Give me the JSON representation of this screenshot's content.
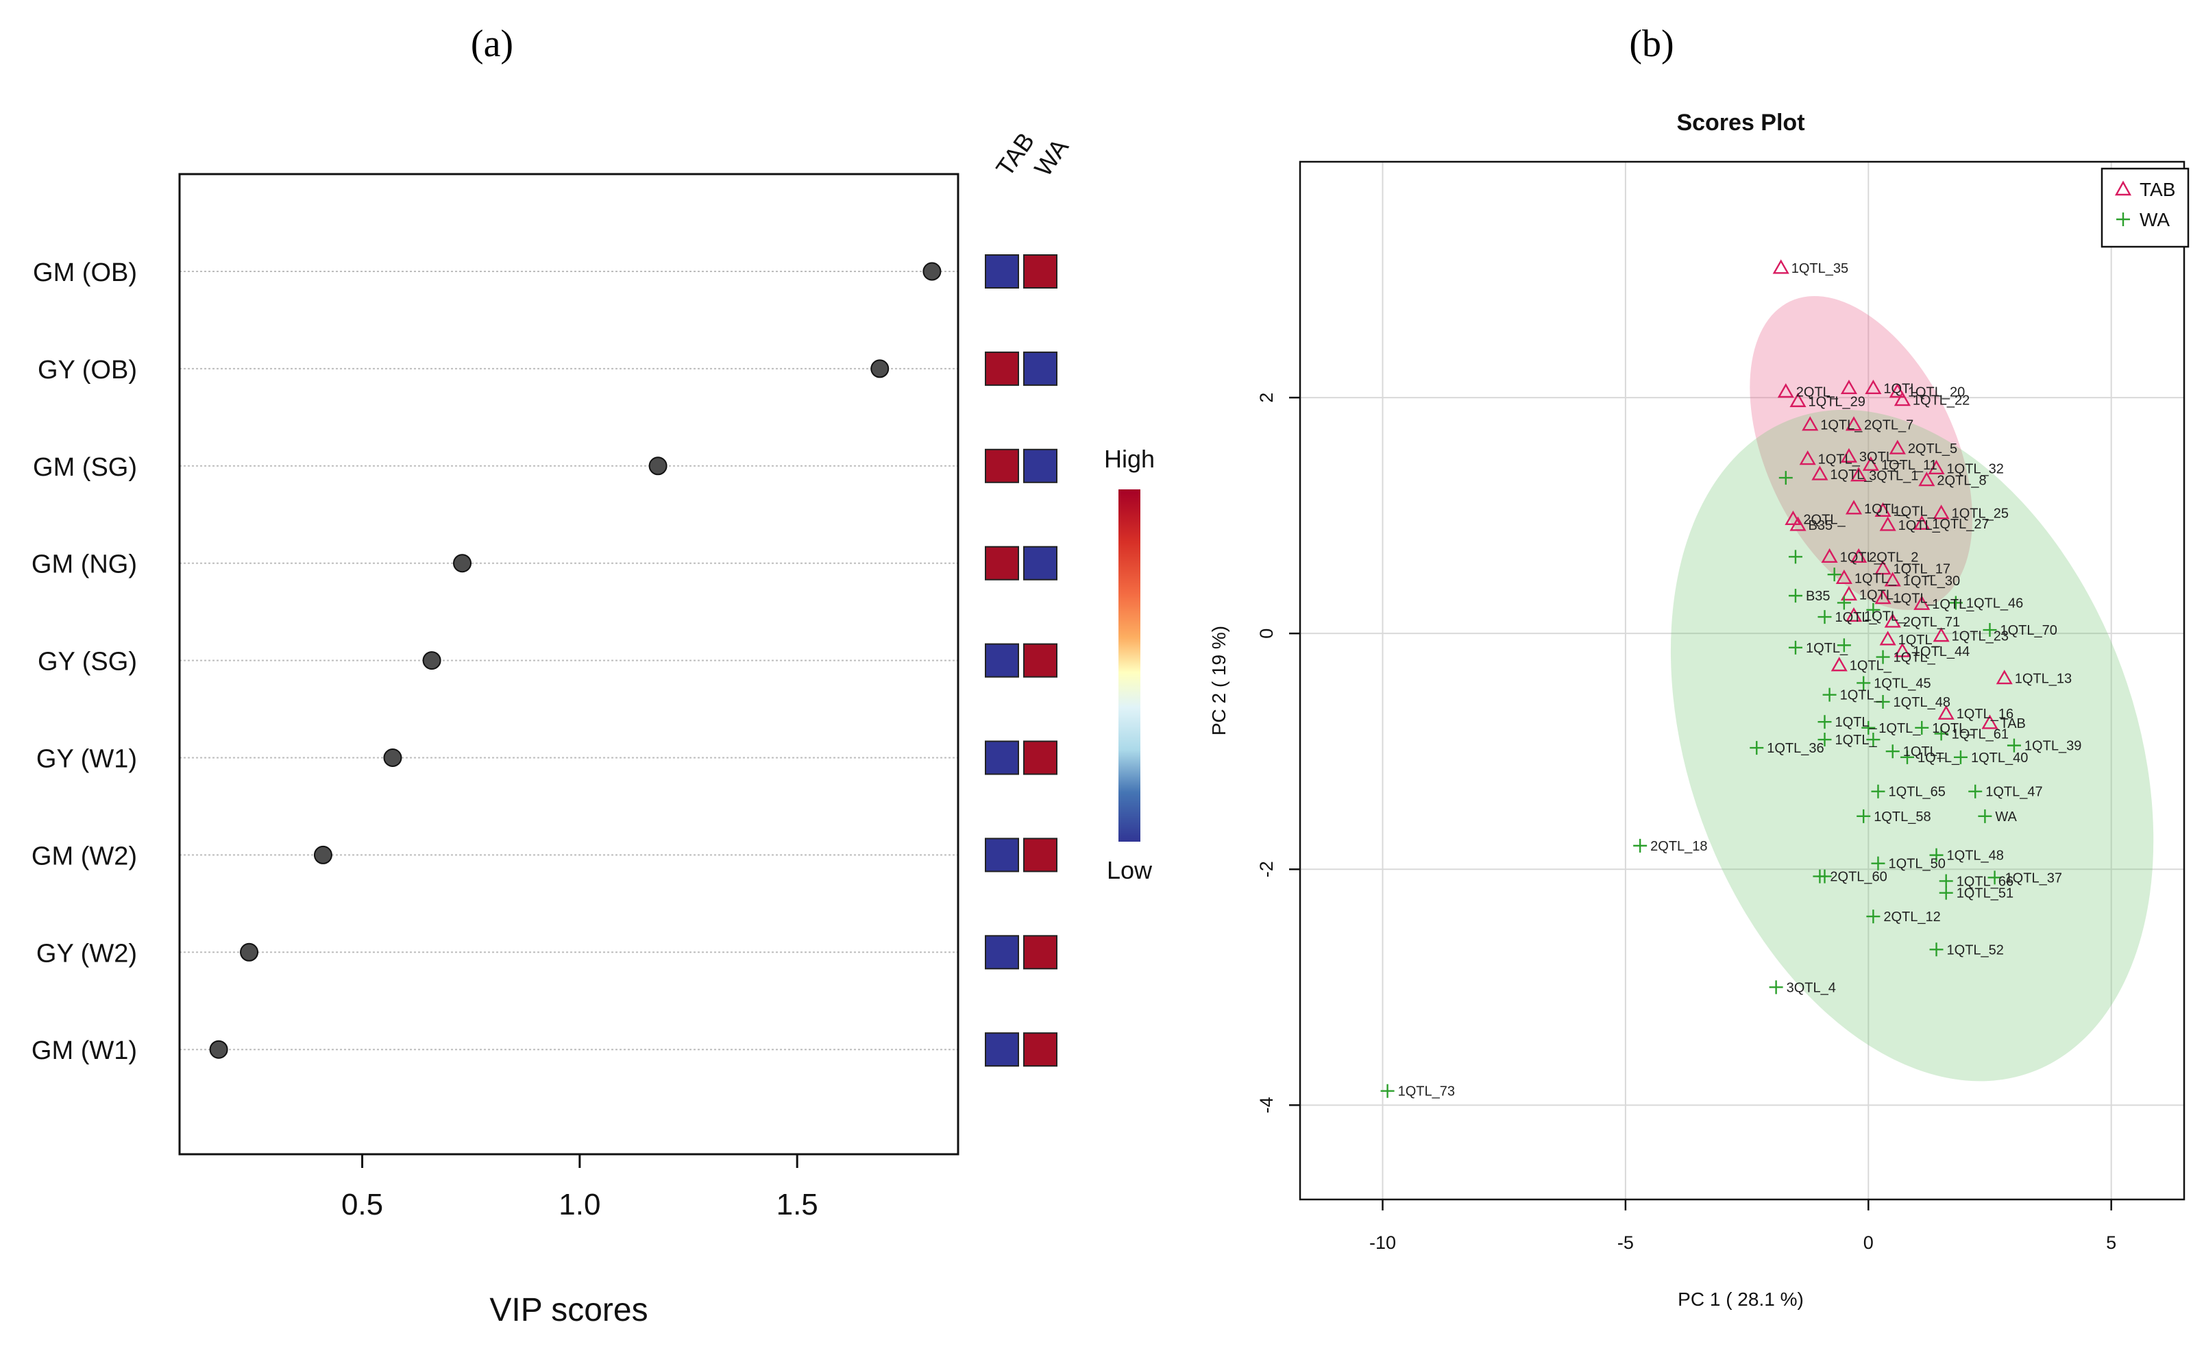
{
  "panels": {
    "a": "(a)",
    "b": "(b)"
  },
  "colors": {
    "tab": "#d81b60",
    "wa": "#2ca02c",
    "heat_high": "#a50f26",
    "heat_low": "#313695"
  },
  "chart_data": [
    {
      "type": "scatter",
      "subtype": "vip-dot-plot",
      "xlabel": "VIP scores",
      "xticks": [
        0.5,
        1.0,
        1.5
      ],
      "xlim": [
        0.08,
        1.87
      ],
      "grid": "horizontal dotted",
      "categories": [
        "GM (OB)",
        "GY (OB)",
        "GM (SG)",
        "GM (NG)",
        "GY (SG)",
        "GY (W1)",
        "GM (W2)",
        "GY (W2)",
        "GM (W1)"
      ],
      "values": [
        1.81,
        1.69,
        1.18,
        0.73,
        0.66,
        0.57,
        0.41,
        0.24,
        0.17
      ],
      "heatmap_columns": [
        "TAB",
        "WA"
      ],
      "heatmap": [
        [
          "low",
          "high"
        ],
        [
          "high",
          "low"
        ],
        [
          "high",
          "low"
        ],
        [
          "high",
          "low"
        ],
        [
          "low",
          "high"
        ],
        [
          "low",
          "high"
        ],
        [
          "low",
          "high"
        ],
        [
          "low",
          "high"
        ],
        [
          "low",
          "high"
        ]
      ],
      "colorbar": {
        "high_label": "High",
        "low_label": "Low"
      }
    },
    {
      "type": "scatter",
      "title": "Scores Plot",
      "xlabel": "PC 1 ( 28.1 %)",
      "ylabel": "PC 2 ( 19 %)",
      "xlim": [
        -11.7,
        6.5
      ],
      "ylim": [
        -4.8,
        4.0
      ],
      "xticks": [
        -10,
        -5,
        0,
        5
      ],
      "yticks": [
        -4,
        -2,
        0,
        2
      ],
      "grid": true,
      "legend_position": "top-right",
      "ellipses": [
        {
          "series": "TAB",
          "cx": -0.15,
          "cy": 1.53,
          "rx": 1.95,
          "ry": 1.42,
          "angle_deg": -25
        },
        {
          "series": "WA",
          "cx": 0.9,
          "cy": -0.95,
          "rx": 4.6,
          "ry": 2.95,
          "angle_deg": -20
        }
      ],
      "series": [
        {
          "name": "TAB",
          "marker": "triangle",
          "points": [
            {
              "x": -1.8,
              "y": 3.1,
              "label": "1QTL_35"
            },
            {
              "x": -1.7,
              "y": 2.05,
              "label": "2QTL_"
            },
            {
              "x": -1.45,
              "y": 1.97,
              "label": "1QTL_29"
            },
            {
              "x": -0.4,
              "y": 2.08,
              "label": ""
            },
            {
              "x": 0.1,
              "y": 2.08,
              "label": "1QTL_"
            },
            {
              "x": 0.6,
              "y": 2.05,
              "label": "1QTL_20"
            },
            {
              "x": 0.7,
              "y": 1.98,
              "label": "1QTL_22"
            },
            {
              "x": -1.2,
              "y": 1.77,
              "label": "1QTL_"
            },
            {
              "x": -0.3,
              "y": 1.77,
              "label": "2QTL_7"
            },
            {
              "x": 0.6,
              "y": 1.57,
              "label": "2QTL_5"
            },
            {
              "x": -1.25,
              "y": 1.48,
              "label": "1QTL_"
            },
            {
              "x": -0.4,
              "y": 1.5,
              "label": "3QTL_"
            },
            {
              "x": 0.05,
              "y": 1.43,
              "label": "1QTL_11"
            },
            {
              "x": 1.4,
              "y": 1.4,
              "label": "1QTL_32"
            },
            {
              "x": -1.0,
              "y": 1.35,
              "label": "1QTL_"
            },
            {
              "x": -0.2,
              "y": 1.34,
              "label": "3QTL_1"
            },
            {
              "x": 1.2,
              "y": 1.3,
              "label": "2QTL_8"
            },
            {
              "x": -0.3,
              "y": 1.06,
              "label": "1QTL_"
            },
            {
              "x": 0.3,
              "y": 1.04,
              "label": "1QTL_"
            },
            {
              "x": 1.5,
              "y": 1.02,
              "label": "1QTL_25"
            },
            {
              "x": -1.55,
              "y": 0.97,
              "label": "2QTL_"
            },
            {
              "x": -1.45,
              "y": 0.92,
              "label": "B35"
            },
            {
              "x": 0.4,
              "y": 0.92,
              "label": "1QTL_"
            },
            {
              "x": 1.1,
              "y": 0.93,
              "label": "1QTL_27"
            },
            {
              "x": -0.8,
              "y": 0.65,
              "label": "1QTL_"
            },
            {
              "x": -0.2,
              "y": 0.65,
              "label": "2QTL_2"
            },
            {
              "x": 0.3,
              "y": 0.55,
              "label": "1QTL_17"
            },
            {
              "x": -0.5,
              "y": 0.47,
              "label": "1QTL_"
            },
            {
              "x": 0.5,
              "y": 0.45,
              "label": "1QTL_30"
            },
            {
              "x": -0.4,
              "y": 0.33,
              "label": "1QTL_"
            },
            {
              "x": 0.3,
              "y": 0.3,
              "label": "1QTL_"
            },
            {
              "x": 1.1,
              "y": 0.25,
              "label": "1QTL_"
            },
            {
              "x": -0.3,
              "y": 0.15,
              "label": "1QTL_"
            },
            {
              "x": 0.5,
              "y": 0.1,
              "label": "2QTL_71"
            },
            {
              "x": 0.4,
              "y": -0.05,
              "label": "1QTL_"
            },
            {
              "x": 1.5,
              "y": -0.02,
              "label": "1QTL_23"
            },
            {
              "x": 0.7,
              "y": -0.15,
              "label": "1QTL_44"
            },
            {
              "x": -0.6,
              "y": -0.27,
              "label": "1QTL_"
            },
            {
              "x": 2.8,
              "y": -0.38,
              "label": "1QTL_13"
            },
            {
              "x": 1.6,
              "y": -0.68,
              "label": "1QTL_16"
            },
            {
              "x": 2.5,
              "y": -0.76,
              "label": "TAB"
            }
          ]
        },
        {
          "name": "WA",
          "marker": "plus",
          "points": [
            {
              "x": -1.7,
              "y": 1.32,
              "label": ""
            },
            {
              "x": -1.5,
              "y": 0.65,
              "label": ""
            },
            {
              "x": -0.7,
              "y": 0.5,
              "label": ""
            },
            {
              "x": -1.5,
              "y": 0.32,
              "label": "B35"
            },
            {
              "x": -0.9,
              "y": 0.14,
              "label": "1QTL_"
            },
            {
              "x": -0.5,
              "y": 0.26,
              "label": ""
            },
            {
              "x": 0.1,
              "y": 0.2,
              "label": ""
            },
            {
              "x": 1.8,
              "y": 0.26,
              "label": "1QTL_46"
            },
            {
              "x": 2.5,
              "y": 0.03,
              "label": "1QTL_70"
            },
            {
              "x": -1.5,
              "y": -0.12,
              "label": "1QTL_"
            },
            {
              "x": -0.5,
              "y": -0.1,
              "label": ""
            },
            {
              "x": 0.3,
              "y": -0.2,
              "label": "1QTL_"
            },
            {
              "x": -0.1,
              "y": -0.42,
              "label": "1QTL_45"
            },
            {
              "x": -0.8,
              "y": -0.52,
              "label": "1QTL_"
            },
            {
              "x": 0.3,
              "y": -0.58,
              "label": "1QTL_48"
            },
            {
              "x": -0.9,
              "y": -0.75,
              "label": "1QTL_"
            },
            {
              "x": 0.0,
              "y": -0.8,
              "label": "1QTL_"
            },
            {
              "x": 1.1,
              "y": -0.8,
              "label": "1QTL_"
            },
            {
              "x": -0.9,
              "y": -0.9,
              "label": "1QTL_"
            },
            {
              "x": 0.1,
              "y": -0.9,
              "label": ""
            },
            {
              "x": 1.5,
              "y": -0.85,
              "label": "1QTL_61"
            },
            {
              "x": -2.3,
              "y": -0.97,
              "label": "1QTL_36"
            },
            {
              "x": 3.0,
              "y": -0.95,
              "label": "1QTL_39"
            },
            {
              "x": 0.5,
              "y": -1.0,
              "label": "1QTL_"
            },
            {
              "x": 0.8,
              "y": -1.05,
              "label": "1QTL_"
            },
            {
              "x": 1.9,
              "y": -1.05,
              "label": "1QTL_40"
            },
            {
              "x": 0.2,
              "y": -1.34,
              "label": "1QTL_65"
            },
            {
              "x": 2.2,
              "y": -1.34,
              "label": "1QTL_47"
            },
            {
              "x": -0.1,
              "y": -1.55,
              "label": "1QTL_58"
            },
            {
              "x": 2.4,
              "y": -1.55,
              "label": "WA"
            },
            {
              "x": -4.7,
              "y": -1.8,
              "label": "2QTL_18"
            },
            {
              "x": 1.4,
              "y": -1.88,
              "label": "1QTL_48"
            },
            {
              "x": 0.2,
              "y": -1.95,
              "label": "1QTL_50"
            },
            {
              "x": -1.0,
              "y": -2.06,
              "label": "2QTL_60"
            },
            {
              "x": -0.9,
              "y": -2.06,
              "label": ""
            },
            {
              "x": 1.6,
              "y": -2.1,
              "label": "1QTL_66"
            },
            {
              "x": 2.6,
              "y": -2.07,
              "label": "1QTL_37"
            },
            {
              "x": 1.6,
              "y": -2.2,
              "label": "1QTL_51"
            },
            {
              "x": 0.1,
              "y": -2.4,
              "label": "2QTL_12"
            },
            {
              "x": 1.4,
              "y": -2.68,
              "label": "1QTL_52"
            },
            {
              "x": -1.9,
              "y": -3.0,
              "label": "3QTL_4"
            },
            {
              "x": -9.9,
              "y": -3.88,
              "label": "1QTL_73"
            }
          ]
        }
      ]
    }
  ]
}
